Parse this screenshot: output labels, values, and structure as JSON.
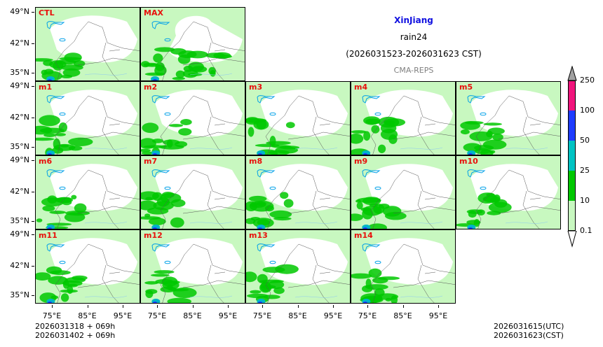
{
  "title": {
    "region": "XinJiang",
    "variable": "rain24",
    "period": "(2026031523-2026031623 CST)",
    "model": "CMA-REPS"
  },
  "panels": [
    "CTL",
    "MAX",
    "m1",
    "m2",
    "m3",
    "m4",
    "m5",
    "m6",
    "m7",
    "m8",
    "m9",
    "m10",
    "m11",
    "m12",
    "m13",
    "m14"
  ],
  "lat_ticks": [
    "49°N",
    "42°N",
    "35°N"
  ],
  "lon_ticks": [
    "75°E",
    "85°E",
    "95°E"
  ],
  "colorbar": {
    "labels": [
      "250",
      "100",
      "50",
      "25",
      "10",
      "0.1"
    ],
    "colors": [
      "#f0147c",
      "#1e3cff",
      "#00c3c3",
      "#00c800",
      "#c8f8c0"
    ],
    "over_color": "#a0a0a0",
    "under_color": "#ffffff"
  },
  "footer": {
    "init_line1": "2026031318  +  069h",
    "init_line2": "2026031402  +  069h",
    "valid_utc": "2026031615(UTC)",
    "valid_cst": "2026031623(CST)"
  }
}
